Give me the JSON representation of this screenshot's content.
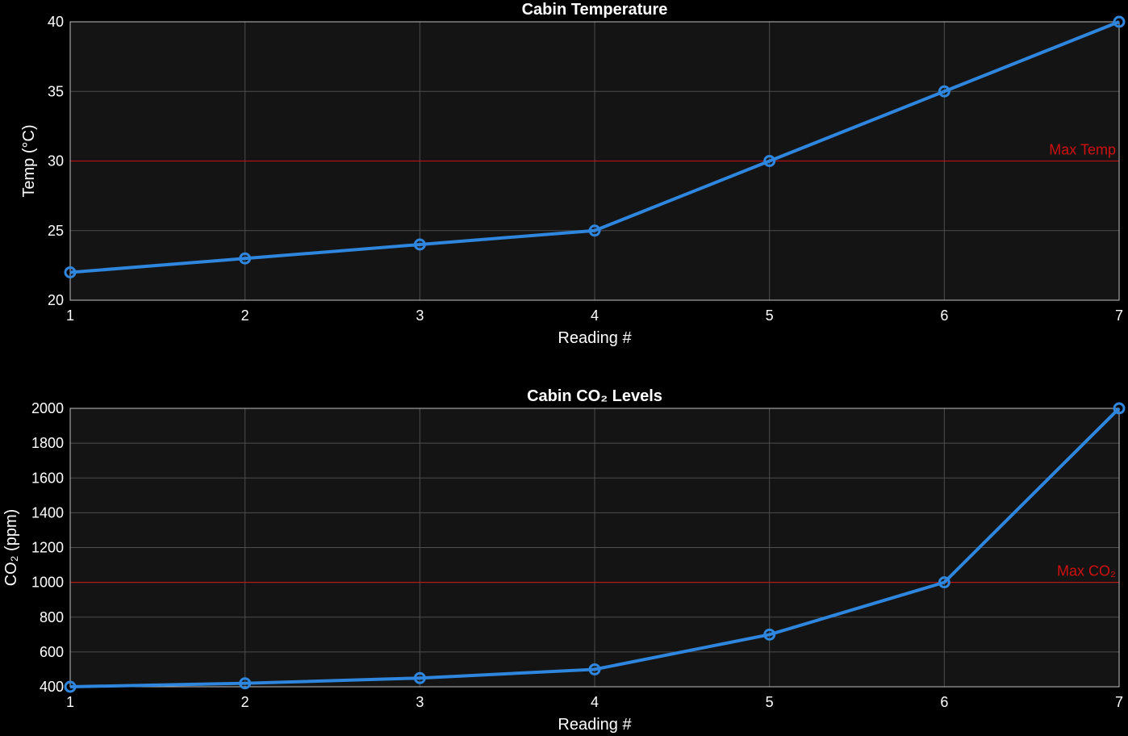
{
  "colors": {
    "background": "#000000",
    "axes_background": "#141414",
    "axes_edge": "#bfbfbf",
    "grid": "#4d4d4d",
    "line": "#2e86de",
    "threshold": "#d01010",
    "text": "#ffffff"
  },
  "chart_data": [
    {
      "type": "line",
      "title": "Cabin Temperature",
      "xlabel": "Reading #",
      "ylabel": "Temp (°C)",
      "x": [
        1,
        2,
        3,
        4,
        5,
        6,
        7
      ],
      "series": [
        {
          "values": [
            22,
            23,
            24,
            25,
            30,
            35,
            40
          ],
          "marker": "circle"
        }
      ],
      "xlim": [
        1,
        7
      ],
      "ylim": [
        20,
        40
      ],
      "xticks": [
        1,
        2,
        3,
        4,
        5,
        6,
        7
      ],
      "yticks": [
        20,
        25,
        30,
        35,
        40
      ],
      "threshold": {
        "value": 30,
        "label": "Max Temp"
      },
      "grid": true
    },
    {
      "type": "line",
      "title": "Cabin CO₂ Levels",
      "xlabel": "Reading #",
      "ylabel": "CO₂ (ppm)",
      "x": [
        1,
        2,
        3,
        4,
        5,
        6,
        7
      ],
      "series": [
        {
          "values": [
            400,
            420,
            450,
            500,
            700,
            1000,
            2000
          ],
          "marker": "circle"
        }
      ],
      "xlim": [
        1,
        7
      ],
      "ylim": [
        400,
        2000
      ],
      "xticks": [
        1,
        2,
        3,
        4,
        5,
        6,
        7
      ],
      "yticks": [
        400,
        600,
        800,
        1000,
        1200,
        1400,
        1600,
        1800,
        2000
      ],
      "threshold": {
        "value": 1000,
        "label": "Max CO₂"
      },
      "grid": true
    }
  ]
}
